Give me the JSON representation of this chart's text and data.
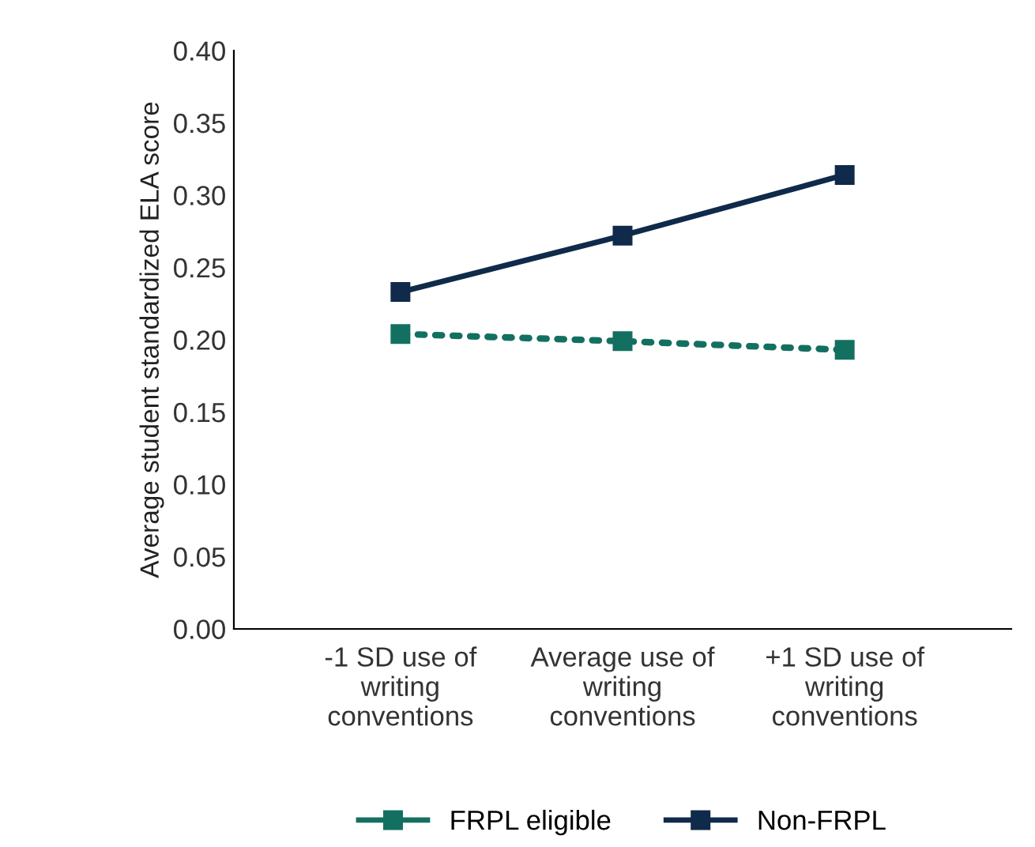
{
  "chart_data": {
    "type": "line",
    "ylabel": "Average student standardized ELA score",
    "categories": [
      "-1 SD use of\nwriting\nconventions",
      "Average use of\nwriting\nconventions",
      "+1 SD use of\nwriting\nconventions"
    ],
    "series": [
      {
        "name": "FRPL eligible",
        "color": "#137060",
        "values": [
          0.204,
          0.199,
          0.193
        ],
        "line_style": "dotted"
      },
      {
        "name": "Non-FRPL",
        "color": "#0f2a4a",
        "values": [
          0.233,
          0.272,
          0.314
        ],
        "line_style": "solid"
      }
    ],
    "ylim": [
      0,
      0.4
    ],
    "yticks": [
      {
        "value": 0,
        "label": "0.00"
      },
      {
        "value": 0.05,
        "label": "0.05"
      },
      {
        "value": 0.1,
        "label": "0.10"
      },
      {
        "value": 0.15,
        "label": "0.15"
      },
      {
        "value": 0.2,
        "label": "0.20"
      },
      {
        "value": 0.25,
        "label": "0.25"
      },
      {
        "value": 0.3,
        "label": "0.30"
      },
      {
        "value": 0.35,
        "label": "0.35"
      },
      {
        "value": 0.4,
        "label": "0.40"
      }
    ],
    "marker": "square",
    "grid": false,
    "legend": "bottom"
  }
}
